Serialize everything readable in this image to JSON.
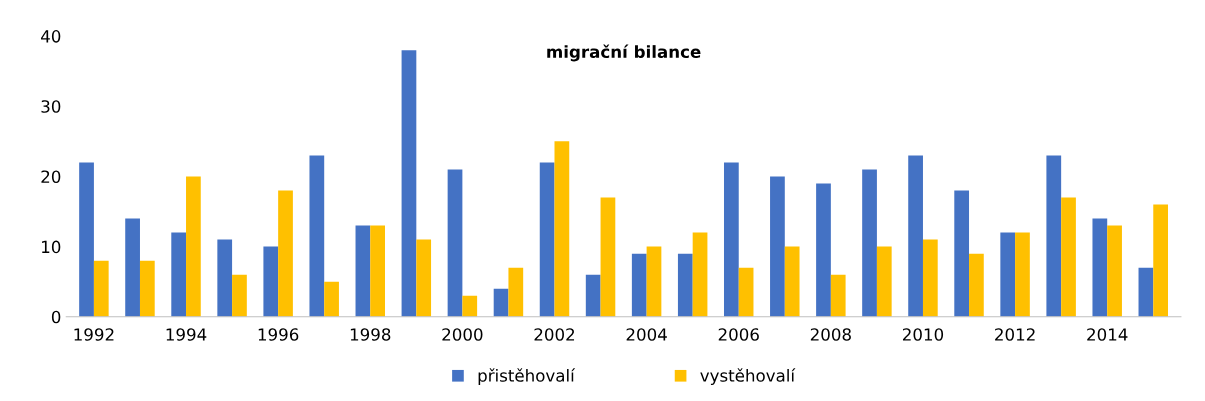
{
  "chart_data": {
    "type": "bar",
    "title": "migrační bilance",
    "categories": [
      "1992",
      null,
      "1994",
      null,
      "1996",
      null,
      "1998",
      null,
      "2000",
      null,
      "2002",
      null,
      "2004",
      null,
      "2006",
      null,
      "2008",
      null,
      "2010",
      null,
      "2012",
      null,
      "2014",
      null
    ],
    "series": [
      {
        "name": "přistěhovalí",
        "color": "#4472c4",
        "values": [
          22,
          14,
          12,
          11,
          10,
          23,
          13,
          38,
          21,
          4,
          22,
          6,
          9,
          9,
          22,
          20,
          19,
          21,
          23,
          18,
          12,
          23,
          14,
          7
        ]
      },
      {
        "name": "vystěhovalí",
        "color": "#ffc000",
        "values": [
          8,
          8,
          20,
          6,
          18,
          5,
          13,
          11,
          3,
          7,
          25,
          17,
          10,
          12,
          7,
          10,
          6,
          10,
          11,
          9,
          12,
          17,
          13,
          16
        ]
      }
    ],
    "ylim": [
      0,
      40
    ],
    "yticks": [
      0,
      10,
      20,
      30,
      40
    ],
    "grid": false,
    "legend": "bottom"
  }
}
